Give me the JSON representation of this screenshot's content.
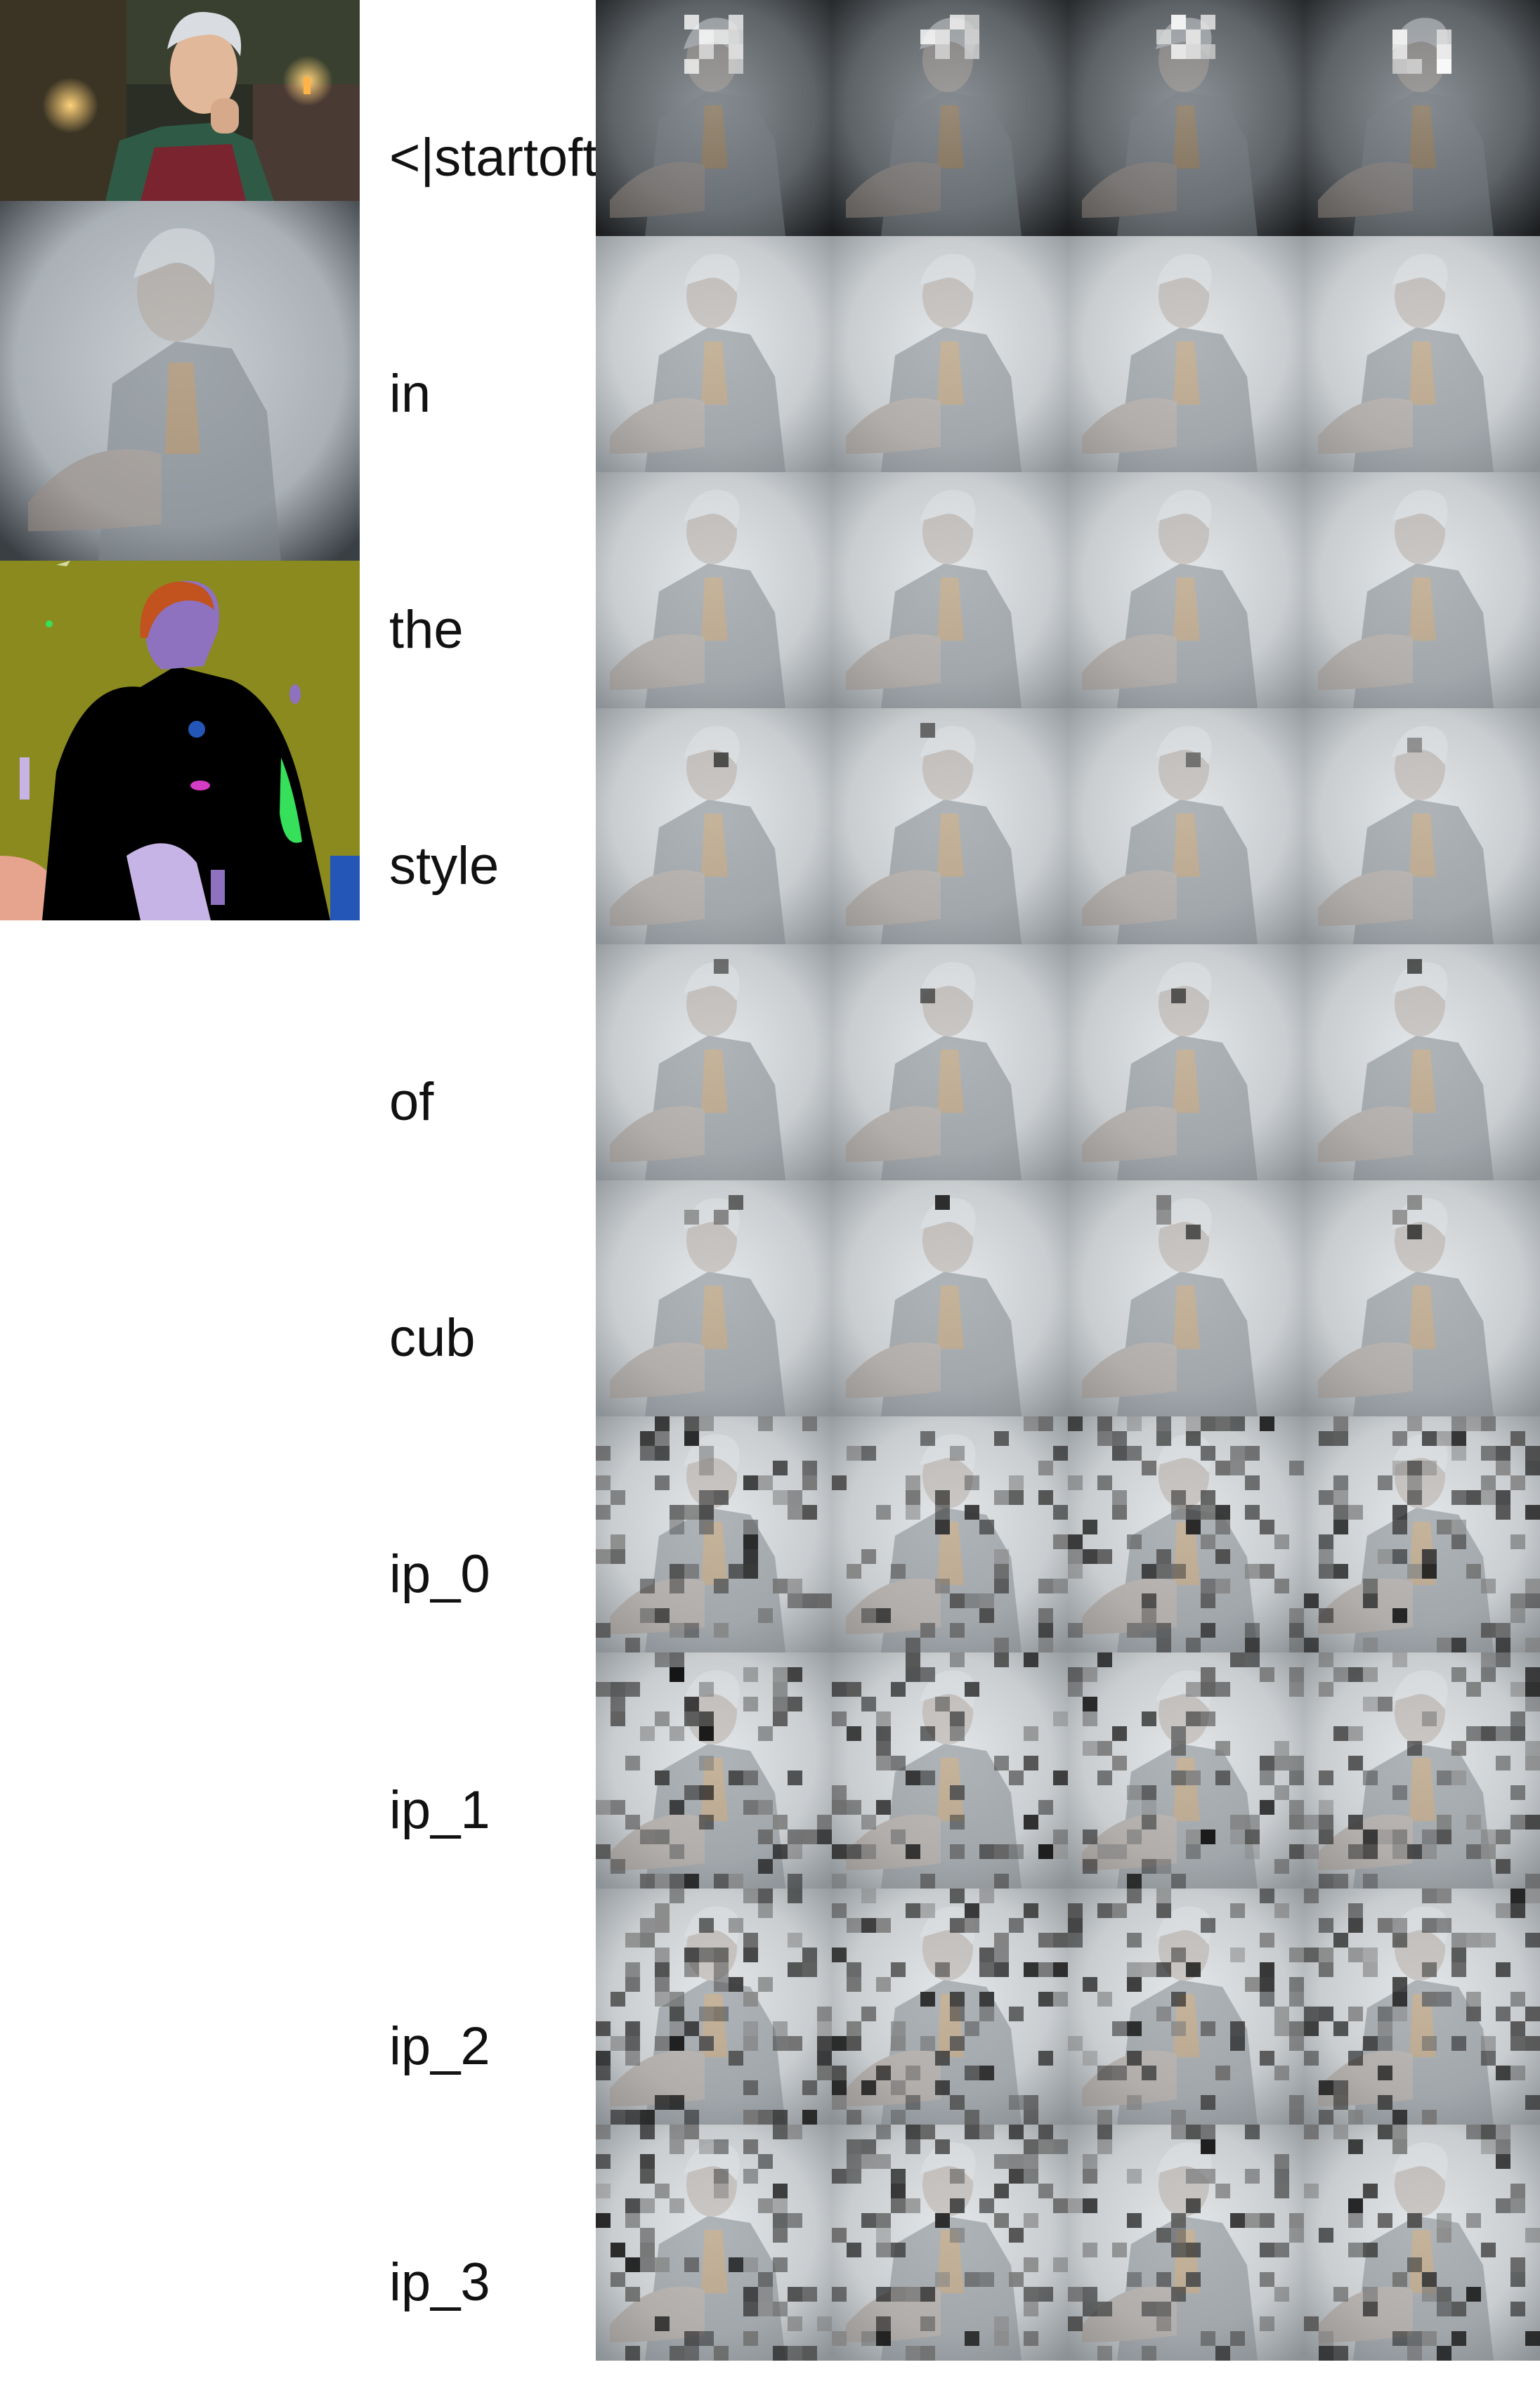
{
  "reference_images": [
    {
      "name": "source-photo",
      "kind": "photo"
    },
    {
      "name": "blurred-generation",
      "kind": "photo"
    },
    {
      "name": "segmentation-map",
      "kind": "segmentation"
    }
  ],
  "tokens": [
    {
      "label": "<|startoftext|>",
      "tone": "dark",
      "blocks": "sparse"
    },
    {
      "label": "in",
      "tone": "light",
      "blocks": "none"
    },
    {
      "label": "the",
      "tone": "light",
      "blocks": "none"
    },
    {
      "label": "style",
      "tone": "light",
      "blocks": "single"
    },
    {
      "label": "of",
      "tone": "light",
      "blocks": "single"
    },
    {
      "label": "cub",
      "tone": "light",
      "blocks": "few"
    },
    {
      "label": "ip_0",
      "tone": "light",
      "blocks": "dense"
    },
    {
      "label": "ip_1",
      "tone": "light",
      "blocks": "dense"
    },
    {
      "label": "ip_2",
      "tone": "light",
      "blocks": "dense"
    },
    {
      "label": "ip_3",
      "tone": "light",
      "blocks": "dense"
    }
  ],
  "colors": {
    "background": "#ffffff",
    "text": "#111111",
    "seg_olive": "#8a8a1e",
    "seg_black": "#000000",
    "seg_orange": "#c2521e",
    "seg_purple": "#8e72c0",
    "seg_green": "#36e05a",
    "seg_lavender": "#c7b4e6",
    "seg_blue": "#2456b8",
    "seg_magenta": "#d43cc4",
    "seg_pink": "#e6a48e"
  }
}
